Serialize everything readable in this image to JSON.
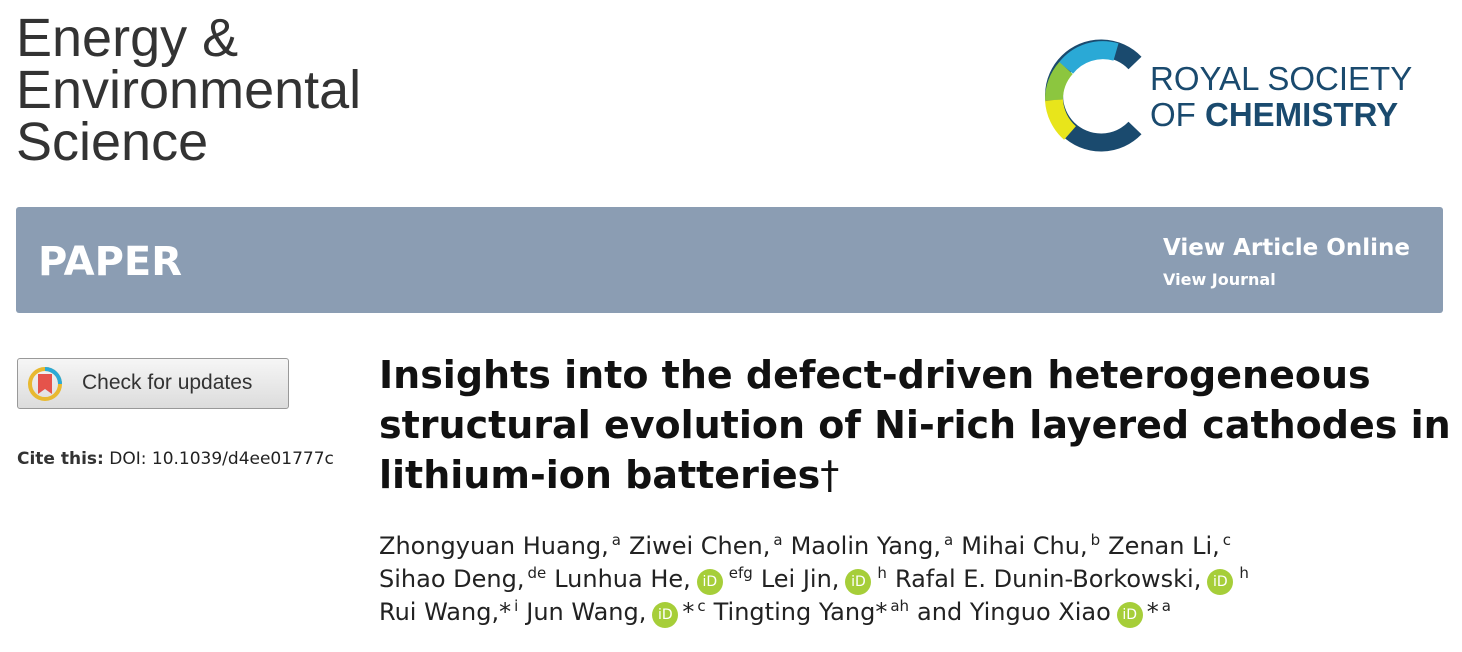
{
  "journal": {
    "title_lines": [
      "Energy &",
      "Environmental",
      "Science"
    ]
  },
  "publisher": {
    "line1": "ROYAL SOCIETY",
    "line2_light": "OF",
    "line2_bold": "CHEMISTRY"
  },
  "banner": {
    "label": "PAPER",
    "view_article": "View Article Online",
    "view_journal": "View Journal"
  },
  "check_updates": "Check for updates",
  "cite": {
    "label": "Cite this:",
    "doi": "DOI: 10.1039/d4ee01777c"
  },
  "article": {
    "title_lines": [
      "Insights into the defect-driven heterogeneous",
      "structural evolution of Ni-rich layered cathodes in",
      "lithium-ion batteries"
    ],
    "dagger": "†"
  },
  "orcid_icon": "iD",
  "authors": {
    "lines": [
      [
        {
          "name": "Zhongyuan Huang,",
          "sup": "a"
        },
        {
          "name": "Ziwei Chen,",
          "sup": "a"
        },
        {
          "name": "Maolin Yang,",
          "sup": "a"
        },
        {
          "name": "Mihai Chu,",
          "sup": "b"
        },
        {
          "name": "Zenan Li,",
          "sup": "c"
        }
      ],
      [
        {
          "name": "Sihao Deng,",
          "sup": "de"
        },
        {
          "name": "Lunhua He,",
          "orcid": true,
          "sup": "efg"
        },
        {
          "name": "Lei Jin,",
          "orcid": true,
          "sup": "h"
        },
        {
          "name": "Rafal E. Dunin-Borkowski,",
          "orcid": true,
          "sup": "h"
        }
      ],
      [
        {
          "name": "Rui Wang,",
          "star": "*",
          "sup": "i"
        },
        {
          "name": "Jun Wang,",
          "orcid": true,
          "star": "*",
          "sup": "c"
        },
        {
          "name": "Tingting Yang",
          "star": "*",
          "sup": "ah"
        },
        {
          "name": "and Yinguo Xiao",
          "orcid": true,
          "star": "*",
          "sup": "a"
        }
      ]
    ]
  }
}
